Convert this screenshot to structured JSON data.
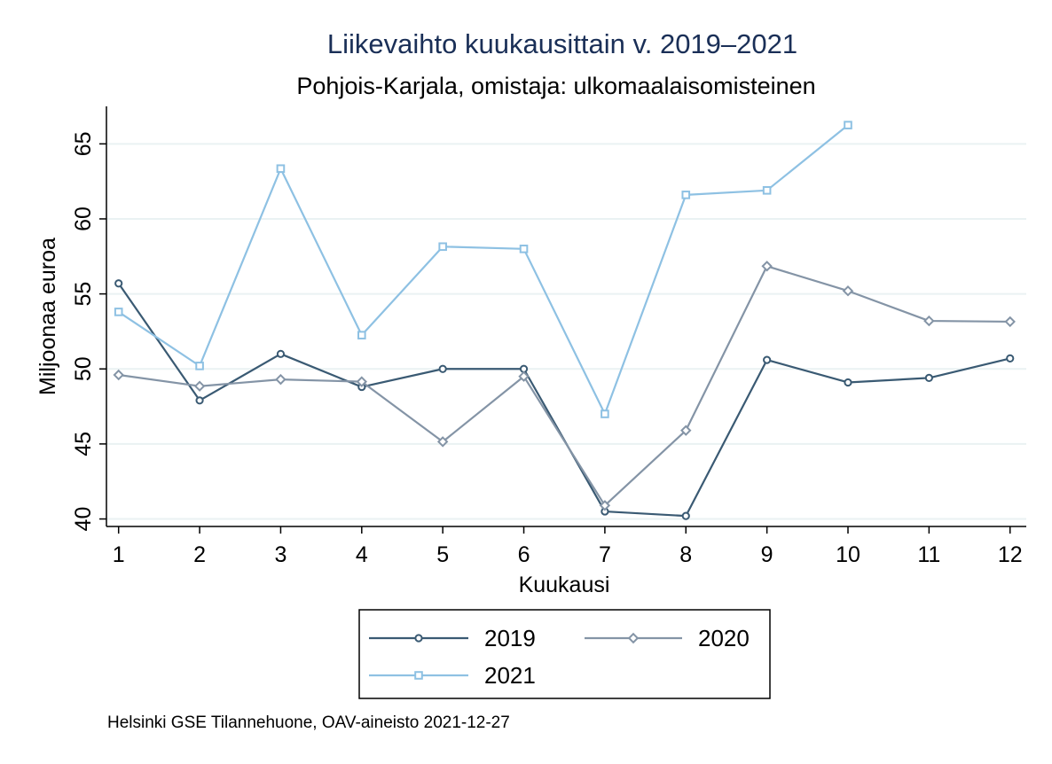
{
  "chart_data": {
    "type": "line",
    "title": "Liikevaihto kuukausittain v. 2019–2021",
    "subtitle": "Pohjois-Karjala, omistaja: ulkomaalaisomisteinen",
    "xlabel": "Kuukausi",
    "ylabel": "Miljoonaa euroa",
    "x": [
      1,
      2,
      3,
      4,
      5,
      6,
      7,
      8,
      9,
      10,
      11,
      12
    ],
    "x_tick_labels": [
      "1",
      "2",
      "3",
      "4",
      "5",
      "6",
      "7",
      "8",
      "9",
      "10",
      "11",
      "12"
    ],
    "y_ticks": [
      40,
      45,
      50,
      55,
      60,
      65
    ],
    "y_tick_labels": [
      "40",
      "45",
      "50",
      "55",
      "60",
      "65"
    ],
    "ylim": [
      39.5,
      67.5
    ],
    "xlim": [
      0.85,
      12.2
    ],
    "grid": true,
    "legend_position": "bottom",
    "series": [
      {
        "name": "2019",
        "color": "#3a5a73",
        "marker": "circle",
        "values": [
          55.7,
          47.9,
          51.0,
          48.8,
          50.0,
          50.0,
          40.5,
          40.2,
          50.6,
          49.1,
          49.4,
          50.7
        ]
      },
      {
        "name": "2020",
        "color": "#8494a6",
        "marker": "diamond",
        "values": [
          49.6,
          48.85,
          49.3,
          49.15,
          45.15,
          49.5,
          40.9,
          45.9,
          56.85,
          55.2,
          53.2,
          53.15
        ]
      },
      {
        "name": "2021",
        "color": "#8ec1e3",
        "marker": "square",
        "values": [
          53.8,
          50.2,
          63.35,
          52.25,
          58.15,
          58.0,
          47.0,
          61.6,
          61.9,
          66.25,
          null,
          null
        ]
      }
    ]
  },
  "note": "Helsinki GSE Tilannehuone, OAV-aineisto 2021-12-27"
}
